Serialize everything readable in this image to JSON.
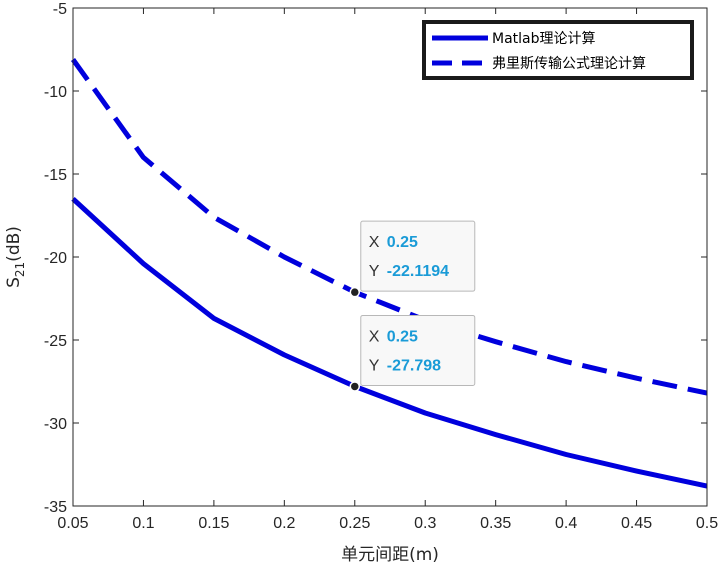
{
  "chart_data": {
    "type": "line",
    "xlabel": "单元间距(m)",
    "ylabel_main": "S",
    "ylabel_sub": "21",
    "ylabel_suffix": "(dB)",
    "xlim": [
      0.05,
      0.5
    ],
    "ylim": [
      -35,
      -5
    ],
    "xticks": [
      "0.05",
      "0.1",
      "0.15",
      "0.2",
      "0.25",
      "0.3",
      "0.35",
      "0.4",
      "0.45",
      "0.5"
    ],
    "yticks": [
      "-5",
      "-10",
      "-15",
      "-20",
      "-25",
      "-30",
      "-35"
    ],
    "grid": false,
    "legend_position": "top-right",
    "series": [
      {
        "name": "Matlab理论计算",
        "style": "solid",
        "color": "#0000dd",
        "x": [
          0.05,
          0.1,
          0.15,
          0.2,
          0.25,
          0.3,
          0.35,
          0.4,
          0.45,
          0.5
        ],
        "y": [
          -16.5,
          -20.4,
          -23.7,
          -25.9,
          -27.798,
          -29.4,
          -30.7,
          -31.9,
          -32.9,
          -33.8
        ]
      },
      {
        "name": "弗里斯传输公式理论计算",
        "style": "dashed",
        "color": "#0000dd",
        "x": [
          0.05,
          0.1,
          0.15,
          0.2,
          0.25,
          0.3,
          0.35,
          0.4,
          0.45,
          0.5
        ],
        "y": [
          -8.1,
          -14.0,
          -17.6,
          -20.0,
          -22.1194,
          -23.8,
          -25.1,
          -26.3,
          -27.3,
          -28.2
        ]
      }
    ],
    "datatips": [
      {
        "x_label": "X",
        "x_value": "0.25",
        "y_label": "Y",
        "y_value": "-22.1194",
        "x": 0.25,
        "y": -22.1194
      },
      {
        "x_label": "X",
        "x_value": "0.25",
        "y_label": "Y",
        "y_value": "-27.798",
        "x": 0.25,
        "y": -27.798
      }
    ]
  }
}
